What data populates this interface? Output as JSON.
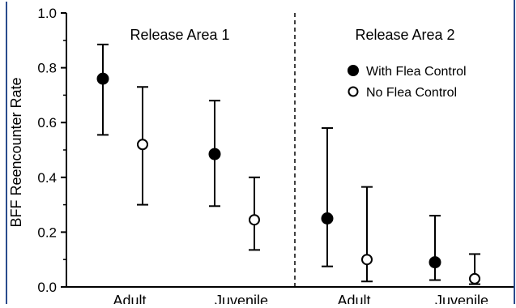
{
  "chart_data": {
    "type": "scatter",
    "ylabel": "BFF Reencounter Rate",
    "xlabel": "",
    "ylim": [
      0.0,
      1.0
    ],
    "yticks": [
      "0.0",
      "0.2",
      "0.4",
      "0.6",
      "0.8",
      "1.0"
    ],
    "grid": false,
    "legend_position": "top-right",
    "panels": [
      {
        "label": "Release Area 1",
        "categories": [
          "Adult",
          "Juvenile"
        ]
      },
      {
        "label": "Release Area 2",
        "categories": [
          "Adult",
          "Juvenile"
        ]
      }
    ],
    "series": [
      {
        "name": "With Flea Control",
        "marker": "filled-circle",
        "color": "#000000",
        "points": [
          {
            "panel": 0,
            "category": "Adult",
            "y": 0.76,
            "lower": 0.555,
            "upper": 0.885
          },
          {
            "panel": 0,
            "category": "Juvenile",
            "y": 0.485,
            "lower": 0.295,
            "upper": 0.68
          },
          {
            "panel": 1,
            "category": "Adult",
            "y": 0.25,
            "lower": 0.075,
            "upper": 0.58
          },
          {
            "panel": 1,
            "category": "Juvenile",
            "y": 0.09,
            "lower": 0.025,
            "upper": 0.26
          }
        ]
      },
      {
        "name": "No Flea Control",
        "marker": "open-circle",
        "color": "#000000",
        "points": [
          {
            "panel": 0,
            "category": "Adult",
            "y": 0.52,
            "lower": 0.3,
            "upper": 0.73
          },
          {
            "panel": 0,
            "category": "Juvenile",
            "y": 0.245,
            "lower": 0.135,
            "upper": 0.4
          },
          {
            "panel": 1,
            "category": "Adult",
            "y": 0.1,
            "lower": 0.02,
            "upper": 0.365
          },
          {
            "panel": 1,
            "category": "Juvenile",
            "y": 0.03,
            "lower": 0.01,
            "upper": 0.12
          }
        ]
      }
    ]
  }
}
